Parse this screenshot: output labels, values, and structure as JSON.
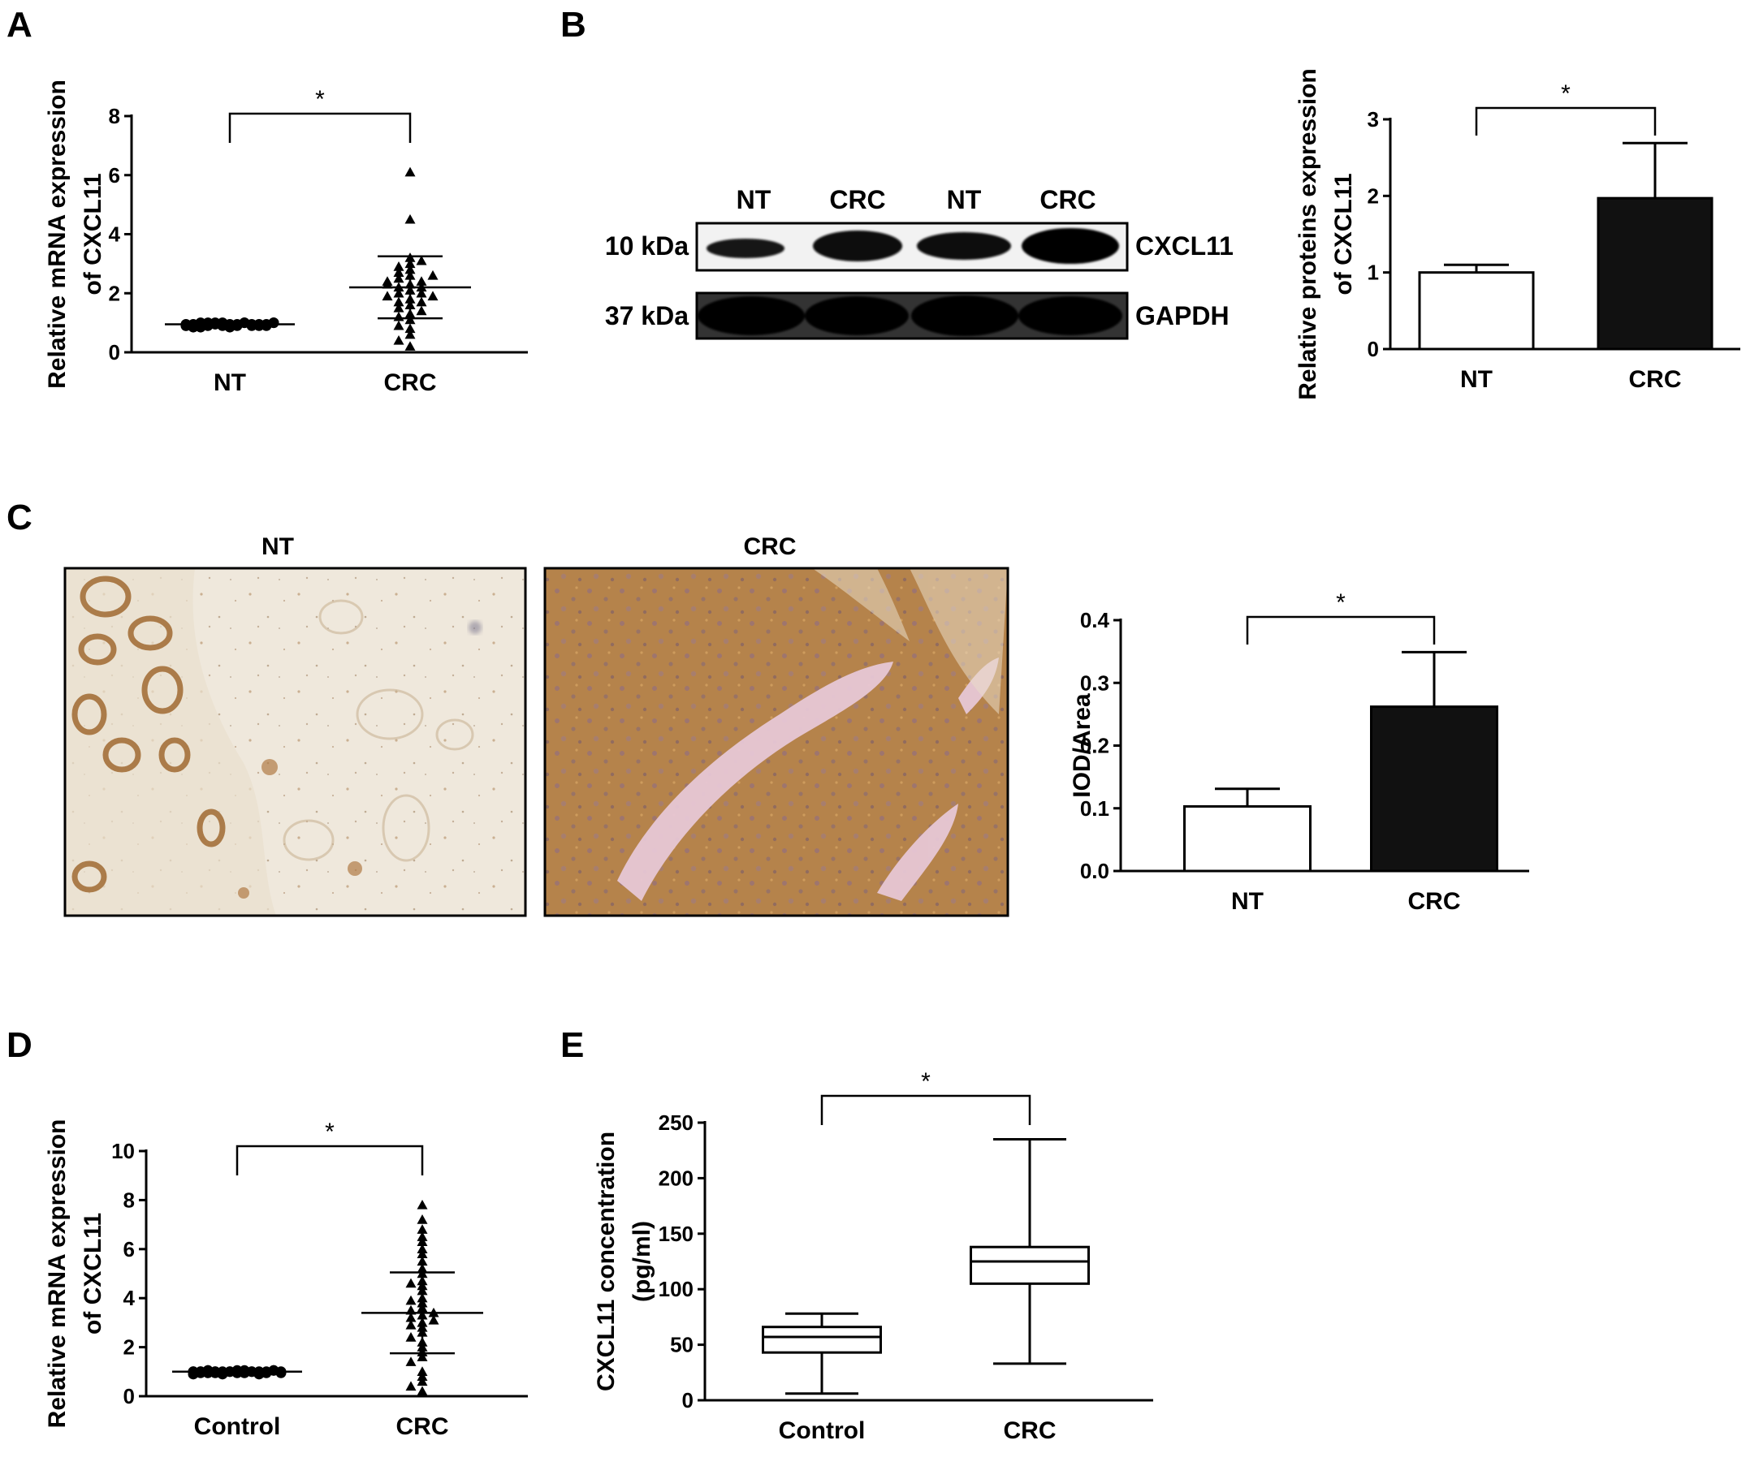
{
  "panels": {
    "A": {
      "letter": "A"
    },
    "B": {
      "letter": "B"
    },
    "C": {
      "letter": "C"
    },
    "D": {
      "letter": "D"
    },
    "E": {
      "letter": "E"
    }
  },
  "blot": {
    "lanes": [
      "NT",
      "CRC",
      "NT",
      "CRC"
    ],
    "rows": [
      {
        "size": "10 kDa",
        "protein": "CXCL11"
      },
      {
        "size": "37 kDa",
        "protein": "GAPDH"
      }
    ]
  },
  "micrographs": {
    "nt_title": "NT",
    "crc_title": "CRC"
  },
  "colors": {
    "filled_bar": "#111111",
    "open_bar": "#ffffff",
    "axis": "#000000",
    "nt_tissue": "#efe7da",
    "crc_tissue": "#b3804a"
  },
  "chart_data": [
    {
      "id": "A",
      "type": "scatter",
      "categories": [
        "NT",
        "CRC"
      ],
      "ylabel_lines": [
        "Relative mRNA expression",
        "of CXCL11"
      ],
      "ylim": [
        0,
        8
      ],
      "yticks": [
        0,
        2,
        4,
        6,
        8
      ],
      "significance": "*",
      "groups": [
        {
          "category": "NT",
          "marker": "circle",
          "mean": 0.95,
          "sd": 0.05,
          "values": [
            0.9,
            0.95,
            1.0,
            0.9,
            0.95,
            1.0,
            0.85,
            0.95,
            1.0,
            0.9,
            0.95,
            0.9,
            1.0,
            0.95,
            0.9,
            0.85,
            0.95,
            1.0,
            0.9,
            0.95,
            0.9,
            1.0,
            0.95,
            0.9,
            0.95,
            1.0,
            0.9,
            0.85,
            0.95,
            1.0
          ]
        },
        {
          "category": "CRC",
          "marker": "triangle",
          "mean": 2.2,
          "sd": 1.05,
          "values": [
            6.1,
            4.5,
            3.2,
            3.0,
            2.9,
            2.8,
            2.7,
            2.6,
            2.5,
            2.4,
            2.4,
            2.3,
            2.2,
            2.2,
            2.1,
            2.0,
            2.0,
            1.9,
            1.8,
            1.7,
            1.6,
            1.5,
            1.4,
            1.3,
            1.2,
            1.1,
            0.9,
            0.8,
            0.6,
            0.4,
            0.2,
            3.1,
            2.6,
            1.9,
            2.3,
            1.7
          ]
        }
      ]
    },
    {
      "id": "B",
      "type": "bar",
      "categories": [
        "NT",
        "CRC"
      ],
      "ylabel_lines": [
        "Relative proteins expression",
        "of CXCL11"
      ],
      "ylim": [
        0,
        3
      ],
      "yticks": [
        0,
        1,
        2,
        3
      ],
      "significance": "*",
      "values": [
        1.0,
        1.97
      ],
      "errors": [
        0.1,
        0.72
      ]
    },
    {
      "id": "C",
      "type": "bar",
      "categories": [
        "NT",
        "CRC"
      ],
      "ylabel_lines": [
        "IOD/Area"
      ],
      "ylim": [
        0,
        0.4
      ],
      "yticks": [
        "0.0",
        "0.1",
        "0.2",
        "0.3",
        "0.4"
      ],
      "significance": "*",
      "values": [
        0.103,
        0.262
      ],
      "errors": [
        0.028,
        0.087
      ]
    },
    {
      "id": "D",
      "type": "scatter",
      "categories": [
        "Control",
        "CRC"
      ],
      "ylabel_lines": [
        "Relative mRNA expression",
        "of CXCL11"
      ],
      "ylim": [
        0,
        10
      ],
      "yticks": [
        0,
        2,
        4,
        6,
        8,
        10
      ],
      "significance": "*",
      "groups": [
        {
          "category": "Control",
          "marker": "circle",
          "mean": 1.0,
          "sd": 0.05,
          "values": [
            1.0,
            0.95,
            1.05,
            1.0,
            0.9,
            1.0,
            1.05,
            0.95,
            1.0,
            1.0,
            0.95,
            1.05,
            1.0,
            0.9,
            1.0,
            1.05,
            0.95,
            1.0,
            1.0,
            0.95,
            1.05,
            1.0,
            0.9,
            1.0,
            1.05,
            0.95,
            1.0,
            1.0,
            0.95,
            1.0
          ]
        },
        {
          "category": "CRC",
          "marker": "triangle",
          "mean": 3.4,
          "sd": 1.65,
          "values": [
            7.8,
            7.2,
            6.8,
            6.5,
            6.3,
            6.0,
            5.8,
            5.5,
            5.2,
            5.0,
            4.7,
            4.5,
            4.3,
            4.0,
            3.8,
            3.6,
            3.5,
            3.4,
            3.3,
            3.2,
            3.0,
            2.8,
            2.6,
            2.4,
            2.2,
            2.0,
            1.8,
            1.6,
            1.4,
            1.0,
            0.8,
            0.6,
            0.4,
            0.2,
            3.9,
            2.9,
            4.6,
            3.1
          ]
        }
      ]
    },
    {
      "id": "E",
      "type": "box",
      "categories": [
        "Control",
        "CRC"
      ],
      "ylabel_lines": [
        "CXCL11 concentration",
        "(pg/ml)"
      ],
      "ylim": [
        0,
        250
      ],
      "yticks": [
        0,
        50,
        100,
        150,
        200,
        250
      ],
      "significance": "*",
      "boxes": [
        {
          "category": "Control",
          "min": 6,
          "q1": 43,
          "median": 57,
          "q3": 66,
          "max": 78
        },
        {
          "category": "CRC",
          "min": 33,
          "q1": 105,
          "median": 125,
          "q3": 138,
          "max": 235
        }
      ]
    }
  ]
}
